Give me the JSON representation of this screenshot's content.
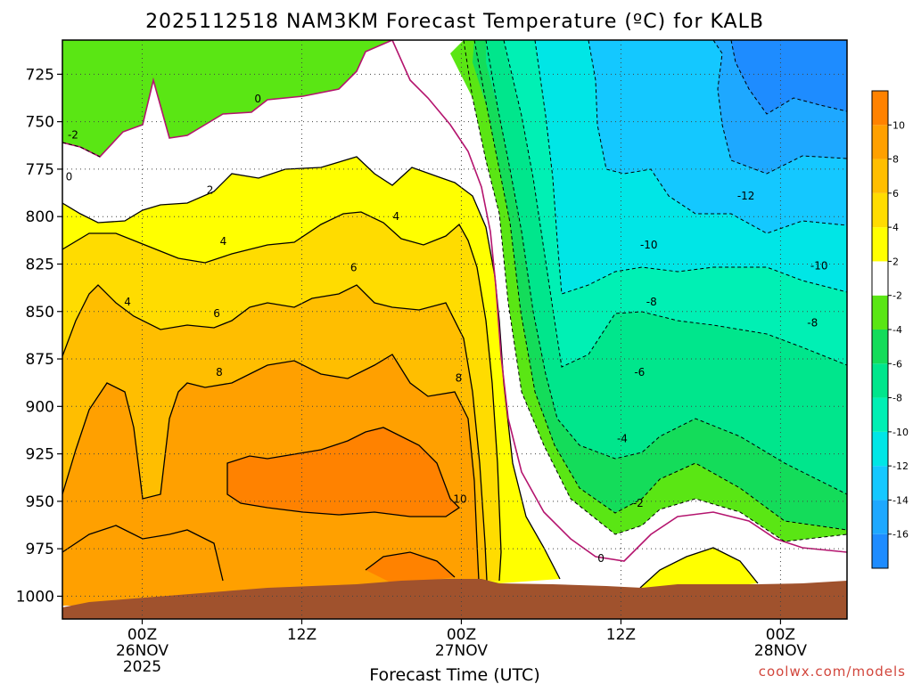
{
  "chart_data": {
    "type": "contour",
    "title": "2025112518 NAM3KM Forecast Temperature (ºC) for KALB",
    "xlabel": "Forecast Time (UTC)",
    "y_ticks": [
      "725",
      "750",
      "775",
      "800",
      "825",
      "850",
      "875",
      "900",
      "925",
      "950",
      "975",
      "1000"
    ],
    "y_values": [
      725,
      750,
      775,
      800,
      825,
      850,
      875,
      900,
      925,
      950,
      975,
      1000
    ],
    "ylim": [
      1012,
      707
    ],
    "x_hours_range": [
      -6,
      53
    ],
    "x_ticks": [
      {
        "hour": 0,
        "lines": [
          "00Z",
          "26NOV",
          "2025"
        ]
      },
      {
        "hour": 12,
        "lines": [
          "12Z"
        ]
      },
      {
        "hour": 24,
        "lines": [
          "00Z",
          "27NOV"
        ]
      },
      {
        "hour": 36,
        "lines": [
          "12Z"
        ]
      },
      {
        "hour": 48,
        "lines": [
          "00Z",
          "28NOV"
        ]
      }
    ],
    "colorbar": {
      "levels": [
        -18,
        -16,
        -14,
        -12,
        -10,
        -8,
        -6,
        -4,
        -2,
        2,
        4,
        6,
        8,
        10,
        12
      ],
      "tick_labels": [
        "-16",
        "-14",
        "-12",
        "-10",
        "-8",
        "-6",
        "-4",
        "-2",
        "2",
        "4",
        "6",
        "8",
        "10"
      ],
      "colors": [
        "#1e8cff",
        "#1ea8ff",
        "#14c8ff",
        "#00e6e6",
        "#00f0b4",
        "#00e68c",
        "#14dc5a",
        "#5ae614",
        "#ffffff",
        "#ffff00",
        "#ffdc00",
        "#ffbe00",
        "#ffa000",
        "#ff8200"
      ]
    },
    "contour_labels": [
      {
        "text": "-2",
        "hour": -5.2,
        "p": 757
      },
      {
        "text": "0",
        "hour": -5.5,
        "p": 779
      },
      {
        "text": "0",
        "hour": 8.7,
        "p": 738
      },
      {
        "text": "2",
        "hour": 5.1,
        "p": 786
      },
      {
        "text": "4",
        "hour": -1.1,
        "p": 845
      },
      {
        "text": "4",
        "hour": 6.1,
        "p": 813
      },
      {
        "text": "4",
        "hour": 19.1,
        "p": 800
      },
      {
        "text": "6",
        "hour": 5.6,
        "p": 851
      },
      {
        "text": "6",
        "hour": 15.9,
        "p": 827
      },
      {
        "text": "8",
        "hour": 5.8,
        "p": 882
      },
      {
        "text": "8",
        "hour": 23.8,
        "p": 885
      },
      {
        "text": "10",
        "hour": 23.9,
        "p": 949
      },
      {
        "text": "-12",
        "hour": 45.4,
        "p": 789
      },
      {
        "text": "-10",
        "hour": 38.1,
        "p": 815
      },
      {
        "text": "-10",
        "hour": 50.9,
        "p": 826
      },
      {
        "text": "-8",
        "hour": 38.3,
        "p": 845
      },
      {
        "text": "-8",
        "hour": 50.4,
        "p": 856
      },
      {
        "text": "-6",
        "hour": 37.4,
        "p": 882
      },
      {
        "text": "-4",
        "hour": 36.1,
        "p": 917
      },
      {
        "text": "-2",
        "hour": 37.3,
        "p": 951
      },
      {
        "text": "0",
        "hour": 34.5,
        "p": 980
      }
    ],
    "credit": "coolwx.com/models"
  }
}
